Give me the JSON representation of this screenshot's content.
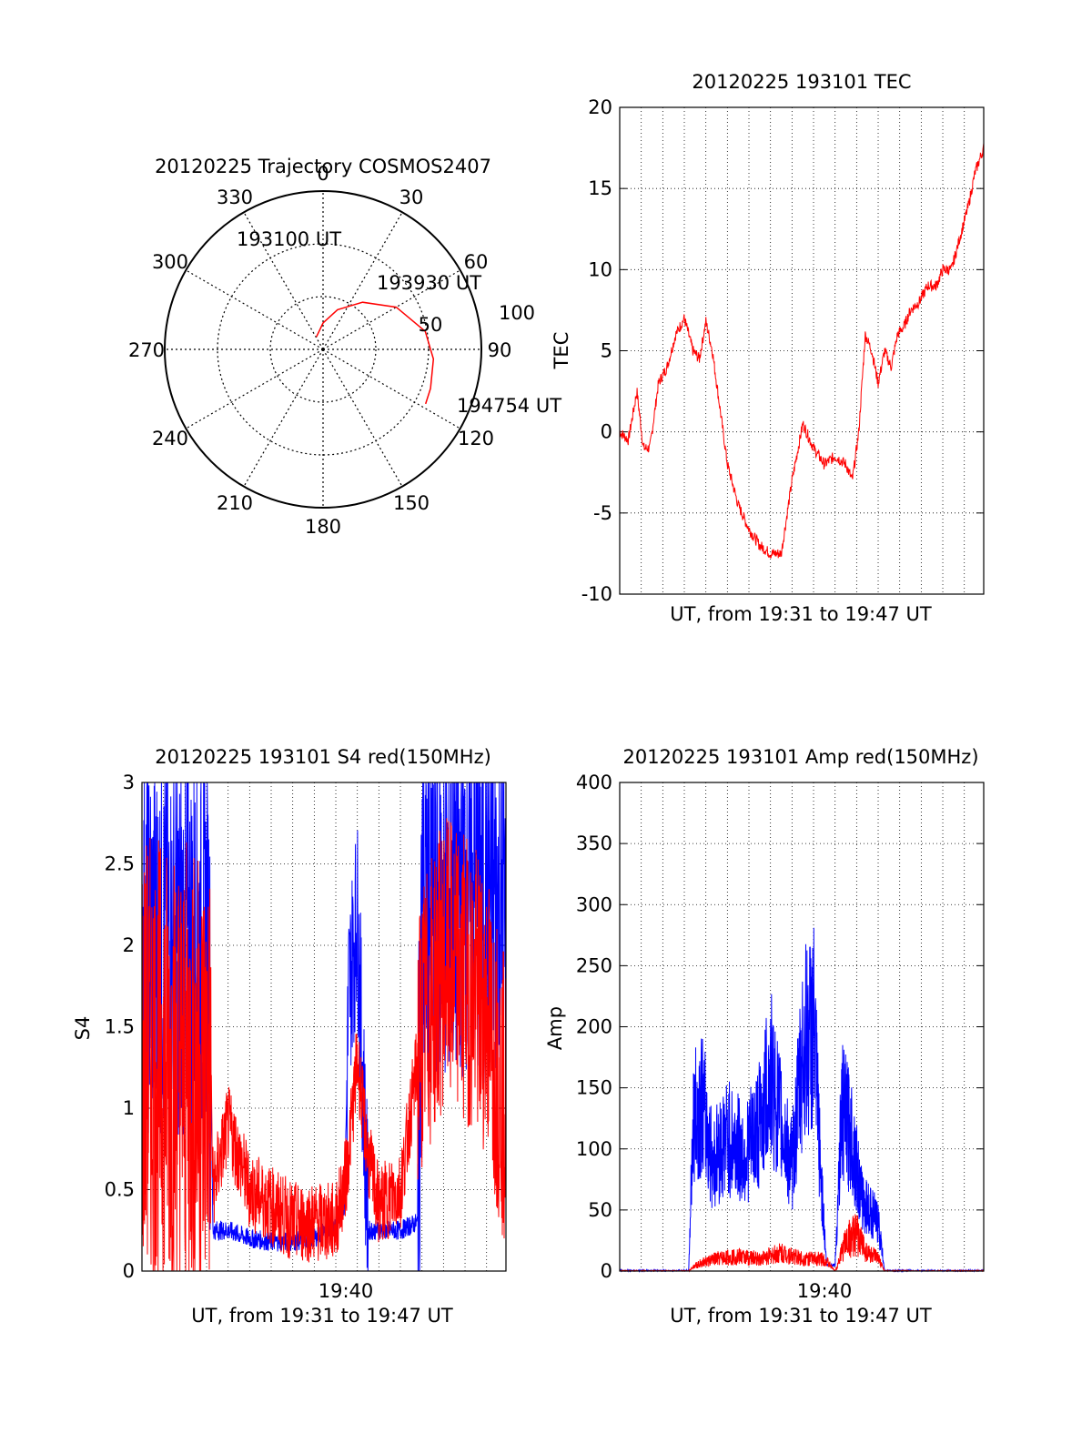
{
  "chart_data": [
    {
      "type": "polar",
      "title": "20120225 Trajectory COSMOS2407",
      "azimuth_labels": [
        "0",
        "30",
        "60",
        "90",
        "120",
        "150",
        "180",
        "210",
        "240",
        "270",
        "300",
        "330"
      ],
      "radial_labels": [
        "50",
        "100"
      ],
      "grid": true,
      "series": [
        {
          "color": "#ff0000",
          "points": [
            [
              -28,
              82
            ],
            [
              0,
              75
            ],
            [
              20,
              66
            ],
            [
              40,
              55
            ],
            [
              60,
              42
            ],
            [
              80,
              31
            ],
            [
              95,
              27
            ],
            [
              110,
              25
            ],
            [
              118,
              24
            ]
          ]
        }
      ],
      "annotations": [
        {
          "text": "193100 UT"
        },
        {
          "text": "193930 UT"
        },
        {
          "text": "194754 UT"
        }
      ]
    },
    {
      "type": "line",
      "title": "20120225 193101 TEC",
      "xlabel": "UT, from 19:31 to 19:47 UT",
      "ylabel": "TEC",
      "xlim": [
        0,
        16.9
      ],
      "ylim": [
        -10,
        20
      ],
      "yticks": [
        "-10",
        "-5",
        "0",
        "5",
        "10",
        "15",
        "20"
      ],
      "grid": true,
      "series": [
        {
          "color": "#ff0000",
          "x": [
            0,
            0.4,
            0.8,
            1.1,
            1.4,
            1.8,
            2.2,
            2.6,
            3.0,
            3.4,
            3.7,
            4.0,
            4.3,
            4.6,
            5.0,
            5.5,
            6.0,
            6.5,
            7.0,
            7.5,
            8.0,
            8.5,
            9.0,
            9.5,
            10.0,
            10.5,
            10.8,
            11.1,
            11.4,
            11.7,
            12.0,
            12.3,
            12.6,
            12.9,
            13.2,
            13.5,
            13.9,
            14.3,
            14.7,
            15.0,
            15.4,
            15.8,
            16.2,
            16.5,
            16.9
          ],
          "y": [
            0,
            -0.5,
            2.5,
            -1,
            -1,
            3,
            4,
            6,
            7,
            5,
            4.5,
            6.8,
            5,
            2,
            -2,
            -4.5,
            -6,
            -7,
            -7.5,
            -7.5,
            -3,
            0.5,
            -1,
            -2,
            -1.5,
            -2,
            -3,
            0,
            6,
            5,
            3,
            5,
            4,
            6,
            6.5,
            7.5,
            8,
            9,
            9,
            10,
            10,
            12,
            14,
            16,
            17.5
          ]
        }
      ]
    },
    {
      "type": "line",
      "title": "20120225 193101 S4 red(150MHz)",
      "xlabel": "UT, from 19:31 to 19:47 UT",
      "ylabel": "S4",
      "xlim": [
        0,
        16.9
      ],
      "ylim": [
        0,
        3
      ],
      "yticks": [
        "0",
        "0.5",
        "1",
        "1.5",
        "2",
        "2.5",
        "3"
      ],
      "xtick_label": "19:40",
      "grid": true,
      "series": [
        {
          "color": "#ff0000",
          "x": [
            0,
            3.2,
            3.3,
            4,
            5,
            6,
            7,
            8,
            9,
            9.5,
            10,
            10.5,
            11,
            12,
            13,
            14,
            15,
            16,
            16.9
          ],
          "y": [
            1.3,
            1.2,
            0.5,
            0.9,
            0.5,
            0.4,
            0.3,
            0.3,
            0.3,
            0.6,
            1.3,
            0.7,
            0.4,
            0.5,
            1.5,
            1.9,
            1.8,
            1.6,
            1.0
          ]
        },
        {
          "color": "#0000ff",
          "x": [
            0,
            3.1,
            3.3,
            4,
            5,
            6,
            7,
            8,
            9,
            9.4,
            9.6,
            10,
            10.5,
            11,
            12,
            12.8,
            13,
            14,
            15,
            16,
            16.9
          ],
          "y": [
            2.0,
            2.0,
            0.25,
            0.25,
            0.2,
            0.18,
            0.18,
            0.2,
            0.3,
            0.4,
            1.7,
            2.2,
            0.25,
            0.25,
            0.25,
            0.3,
            2.2,
            2.3,
            2.4,
            2.3,
            2.2
          ]
        }
      ]
    },
    {
      "type": "line",
      "title": "20120225 193101 Amp red(150MHz)",
      "xlabel": "UT, from 19:31 to 19:47 UT",
      "ylabel": "Amp",
      "xlim": [
        0,
        16.9
      ],
      "ylim": [
        0,
        400
      ],
      "yticks": [
        "0",
        "50",
        "100",
        "150",
        "200",
        "250",
        "300",
        "350",
        "400"
      ],
      "xtick_label": "19:40",
      "grid": true,
      "series": [
        {
          "color": "#ff0000",
          "x": [
            0,
            3.2,
            3.5,
            4.5,
            5.5,
            6.5,
            7.5,
            8.5,
            9.5,
            10.0,
            10.5,
            11.0,
            11.5,
            12.0,
            12.3,
            16.9
          ],
          "y": [
            0,
            0,
            5,
            10,
            12,
            10,
            15,
            10,
            10,
            0,
            25,
            30,
            15,
            10,
            0,
            0
          ]
        },
        {
          "color": "#0000ff",
          "x": [
            0,
            3.2,
            3.4,
            3.8,
            4.3,
            5.0,
            5.8,
            6.5,
            7.0,
            7.5,
            8.0,
            8.5,
            9.0,
            9.3,
            9.6,
            10.0,
            10.3,
            10.8,
            11.2,
            11.6,
            12.0,
            12.3,
            16.9
          ],
          "y": [
            0,
            0,
            120,
            140,
            90,
            110,
            95,
            120,
            160,
            120,
            85,
            180,
            200,
            90,
            5,
            5,
            130,
            110,
            60,
            50,
            40,
            0,
            0
          ]
        }
      ]
    }
  ]
}
